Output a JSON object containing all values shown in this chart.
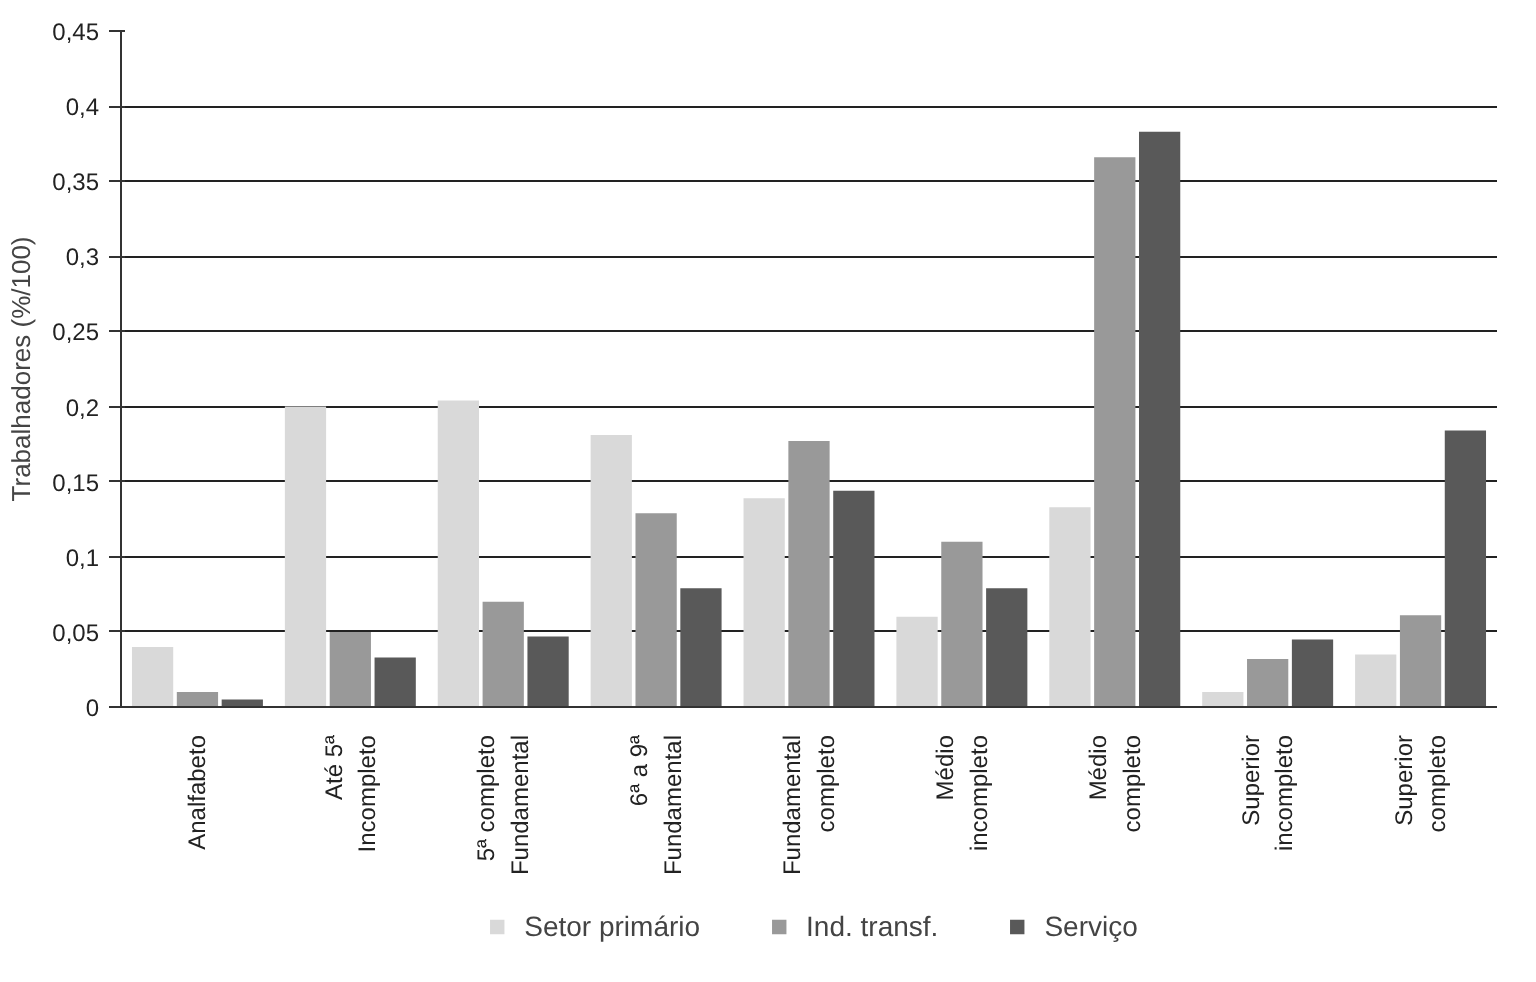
{
  "chart_data": {
    "type": "bar",
    "ylabel": "Trabalhadores (%/100)",
    "categories": [
      "Analfabeto",
      "Até 5ª\nIncompleto",
      "5ª completo\nFundamental",
      "6ª a 9ª\nFundamental",
      "Fundamental\ncompleto",
      "Médio\nincompleto",
      "Médio\ncompleto",
      "Superior\nincompleto",
      "Superior\ncompleto"
    ],
    "series": [
      {
        "name": "Setor primário",
        "color": "#d9d9d9",
        "values": [
          0.04,
          0.2,
          0.204,
          0.181,
          0.139,
          0.06,
          0.133,
          0.01,
          0.035
        ]
      },
      {
        "name": "Ind. transf.",
        "color": "#999999",
        "values": [
          0.01,
          0.05,
          0.07,
          0.129,
          0.177,
          0.11,
          0.366,
          0.032,
          0.061
        ]
      },
      {
        "name": "Serviço",
        "color": "#595959",
        "values": [
          0.005,
          0.033,
          0.047,
          0.079,
          0.144,
          0.079,
          0.383,
          0.045,
          0.184
        ]
      }
    ],
    "ylim": [
      0,
      0.45
    ],
    "yticks": [
      {
        "value": 0,
        "label": "0"
      },
      {
        "value": 0.05,
        "label": "0,05"
      },
      {
        "value": 0.1,
        "label": "0,1"
      },
      {
        "value": 0.15,
        "label": "0,15"
      },
      {
        "value": 0.2,
        "label": "0,2"
      },
      {
        "value": 0.25,
        "label": "0,25"
      },
      {
        "value": 0.3,
        "label": "0,3"
      },
      {
        "value": 0.35,
        "label": "0,35"
      },
      {
        "value": 0.4,
        "label": "0,4"
      },
      {
        "value": 0.45,
        "label": "0,45"
      }
    ],
    "grid": "y",
    "legend": "bottom"
  }
}
